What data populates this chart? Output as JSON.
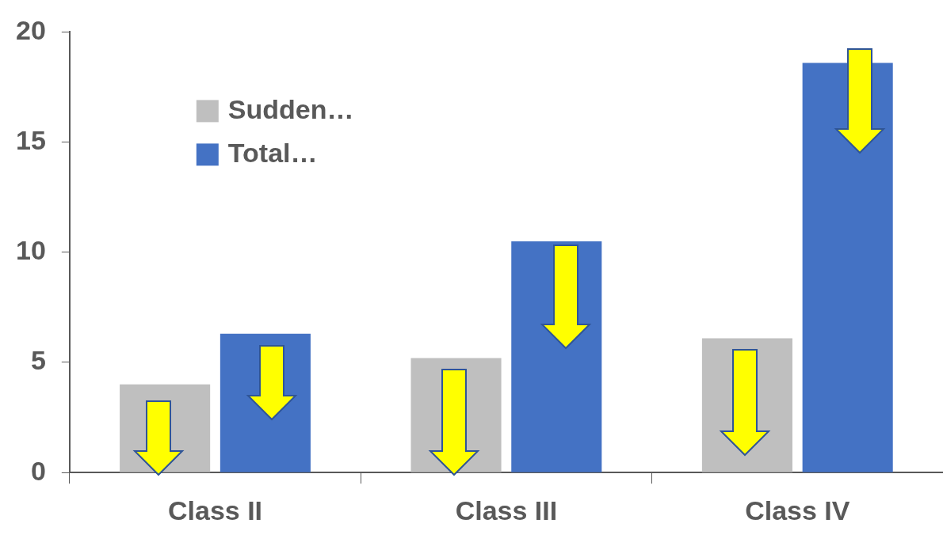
{
  "chart_data": {
    "type": "bar",
    "categories": [
      "Class II",
      "Class III",
      "Class IV"
    ],
    "series": [
      {
        "name": "Sudden…",
        "color": "#bfbfbf",
        "values": [
          4.0,
          5.2,
          6.1
        ]
      },
      {
        "name": "Total…",
        "color": "#4472c4",
        "values": [
          6.3,
          10.5,
          18.6
        ]
      }
    ],
    "ylim": [
      0,
      20
    ],
    "yticks": [
      0,
      5,
      10,
      15,
      20
    ],
    "grid": false,
    "legend": "top left"
  }
}
